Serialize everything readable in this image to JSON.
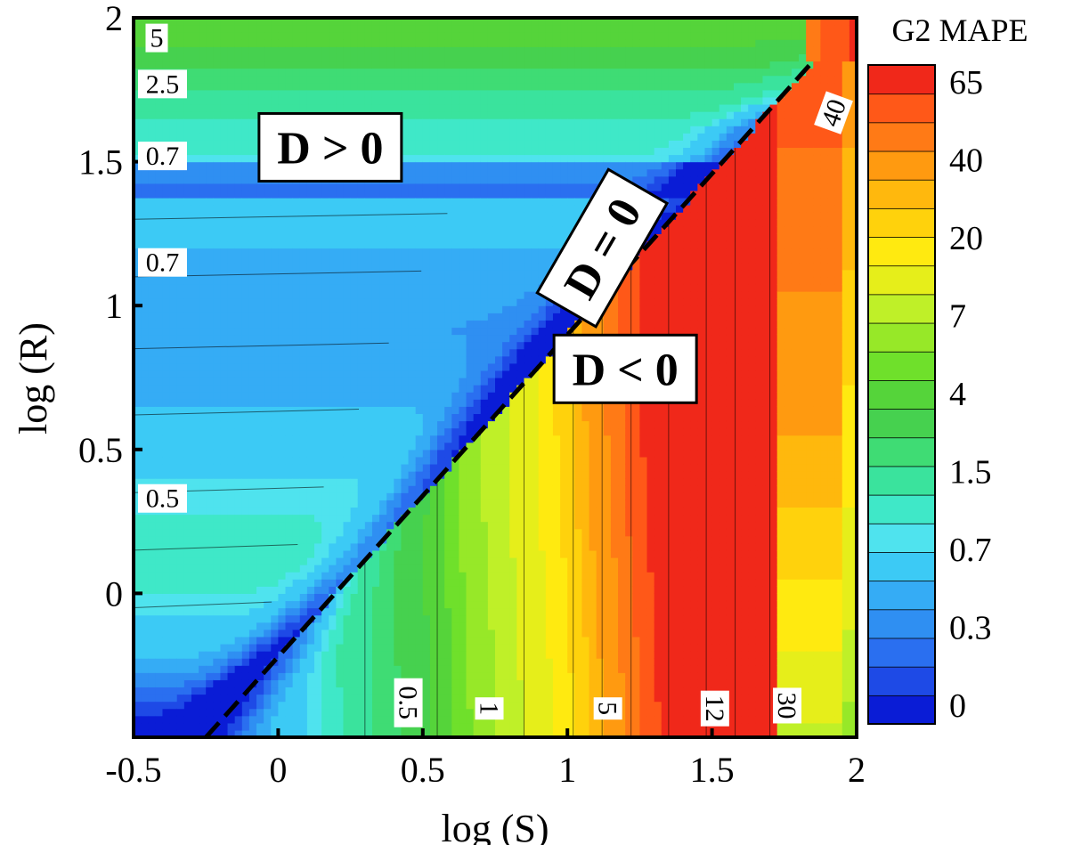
{
  "chart_data": {
    "type": "heatmap",
    "title": "",
    "xlabel": "log (S)",
    "ylabel": "log (R)",
    "xlim": [
      -0.5,
      2
    ],
    "ylim": [
      -0.5,
      2
    ],
    "x_ticks": [
      "-0.5",
      "0",
      "0.5",
      "1",
      "1.5",
      "2"
    ],
    "y_ticks": [
      "0",
      "0.5",
      "1",
      "1.5",
      "2"
    ],
    "colorbar": {
      "title": "G2 MAPE",
      "labels": [
        "65",
        "40",
        "20",
        "7",
        "4",
        "1.5",
        "0.7",
        "0.3",
        "0"
      ],
      "levels": [
        0,
        0.1,
        0.2,
        0.3,
        0.4,
        0.5,
        0.7,
        0.8,
        1,
        1.5,
        2,
        3,
        4,
        5,
        7,
        10,
        15,
        20,
        25,
        30,
        40,
        50,
        65,
        70
      ],
      "colors": [
        "#0a1cd6",
        "#1e4ae6",
        "#2a6ff0",
        "#2f8ff2",
        "#35acf5",
        "#3ccaf5",
        "#4fe3ee",
        "#3fe8c8",
        "#3ae39d",
        "#3fdc74",
        "#46d14f",
        "#55d43a",
        "#6fe02b",
        "#97e828",
        "#bff028",
        "#e6ee1a",
        "#ffea10",
        "#ffd20c",
        "#ffb80d",
        "#ff9a10",
        "#ff7a16",
        "#ff5818",
        "#f0281a"
      ]
    },
    "boundary_line": {
      "label": "D = 0",
      "style": "dashed",
      "points": [
        [
          -0.25,
          -0.5
        ],
        [
          1.85,
          1.85
        ]
      ]
    },
    "regions": [
      {
        "label": "D > 0",
        "x": 0.18,
        "y": 1.55
      },
      {
        "label": "D = 0",
        "x": 1.12,
        "y": 1.2
      },
      {
        "label": "D < 0",
        "x": 1.2,
        "y": 0.78
      }
    ],
    "contour_labels": [
      {
        "text": "5",
        "x": -0.42,
        "y": 1.93,
        "rotate": 0
      },
      {
        "text": "2.5",
        "x": -0.4,
        "y": 1.77,
        "rotate": 0
      },
      {
        "text": "0.7",
        "x": -0.4,
        "y": 1.52,
        "rotate": 0
      },
      {
        "text": "0.7",
        "x": -0.4,
        "y": 1.15,
        "rotate": 0
      },
      {
        "text": "0.5",
        "x": -0.4,
        "y": 0.33,
        "rotate": 0
      },
      {
        "text": "0.5",
        "x": 0.45,
        "y": -0.38,
        "rotate": 90
      },
      {
        "text": "1",
        "x": 0.73,
        "y": -0.4,
        "rotate": 90
      },
      {
        "text": "5",
        "x": 1.14,
        "y": -0.4,
        "rotate": 90
      },
      {
        "text": "12",
        "x": 1.51,
        "y": -0.4,
        "rotate": 90
      },
      {
        "text": "30",
        "x": 1.76,
        "y": -0.39,
        "rotate": 90
      },
      {
        "text": "40",
        "x": 1.92,
        "y": 1.67,
        "rotate": -70
      }
    ]
  }
}
